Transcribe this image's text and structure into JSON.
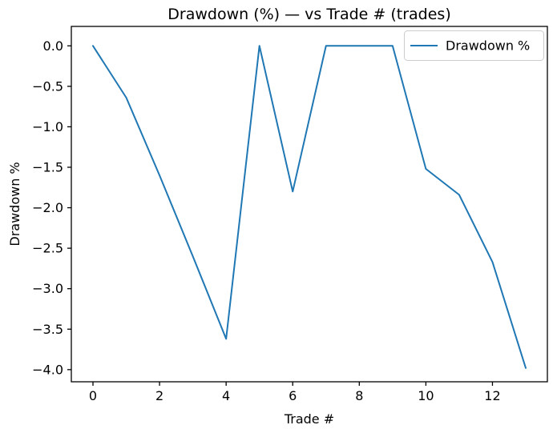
{
  "figure": {
    "background": "#ffffff",
    "spine_color": "#000000",
    "text_color": "#000000"
  },
  "chart_data": {
    "type": "line",
    "title": "Drawdown (%) — vs Trade # (trades)",
    "xlabel": "Trade #",
    "ylabel": "Drawdown %",
    "x": [
      0,
      1,
      2,
      3,
      4,
      5,
      6,
      7,
      8,
      9,
      10,
      11,
      12,
      13
    ],
    "series": [
      {
        "name": "Drawdown %",
        "color": "#1f77b4",
        "values": [
          0.0,
          -0.64,
          -1.6,
          -2.6,
          -3.62,
          0.0,
          -1.8,
          0.0,
          0.0,
          0.0,
          -1.52,
          -1.84,
          -2.67,
          -3.98
        ]
      }
    ],
    "xlim": [
      -0.65,
      13.65
    ],
    "ylim": [
      -4.15,
      0.24
    ],
    "xticks": [
      0,
      2,
      4,
      6,
      8,
      10,
      12
    ],
    "xtick_labels": [
      "0",
      "2",
      "4",
      "6",
      "8",
      "10",
      "12"
    ],
    "yticks": [
      0.0,
      -0.5,
      -1.0,
      -1.5,
      -2.0,
      -2.5,
      -3.0,
      -3.5,
      -4.0
    ],
    "ytick_labels": [
      "0.0",
      "−0.5",
      "−1.0",
      "−1.5",
      "−2.0",
      "−2.5",
      "−3.0",
      "−3.5",
      "−4.0"
    ],
    "grid": false,
    "legend": {
      "position": "upper right",
      "entries": [
        {
          "label": "Drawdown %",
          "color": "#1f77b4"
        }
      ]
    }
  }
}
